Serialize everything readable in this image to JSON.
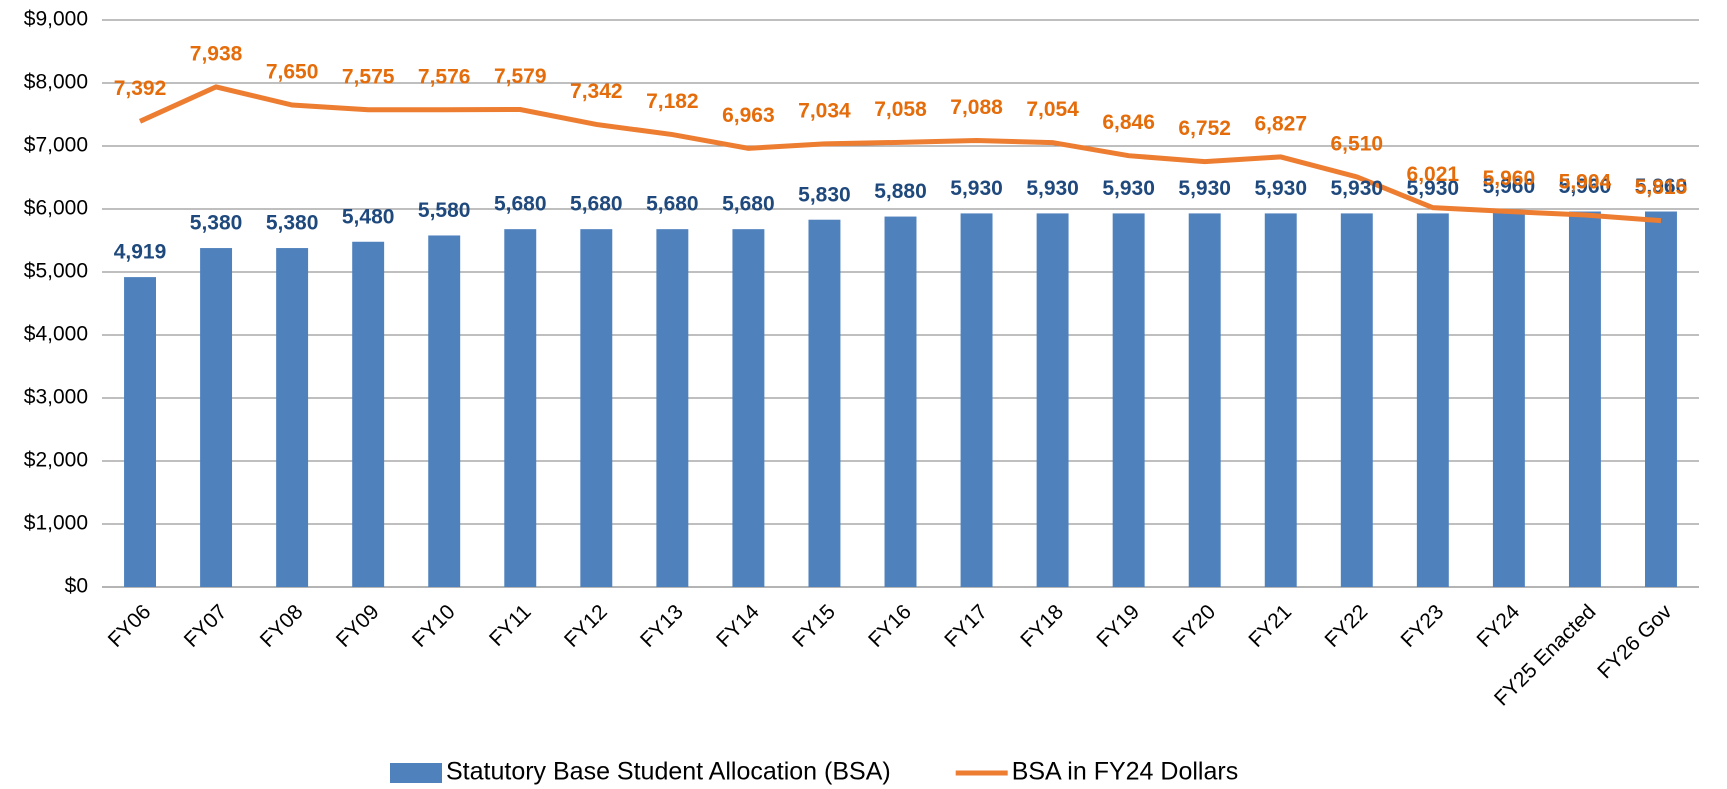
{
  "chart_data": {
    "type": "bar_line",
    "categories": [
      "FY06",
      "FY07",
      "FY08",
      "FY09",
      "FY10",
      "FY11",
      "FY12",
      "FY13",
      "FY14",
      "FY15",
      "FY16",
      "FY17",
      "FY18",
      "FY19",
      "FY20",
      "FY21",
      "FY22",
      "FY23",
      "FY24",
      "FY25 Enacted",
      "FY26 Gov"
    ],
    "series": [
      {
        "name": "Statutory Base Student Allocation (BSA)",
        "type": "bar",
        "color": "#4f81bd",
        "label_color": "#1f497d",
        "values": [
          4919,
          5380,
          5380,
          5480,
          5580,
          5680,
          5680,
          5680,
          5680,
          5830,
          5880,
          5930,
          5930,
          5930,
          5930,
          5930,
          5930,
          5930,
          5960,
          5960,
          5960
        ],
        "value_labels": [
          "4,919",
          "5,380",
          "5,380",
          "5,480",
          "5,580",
          "5,680",
          "5,680",
          "5,680",
          "5,680",
          "5,830",
          "5,880",
          "5,930",
          "5,930",
          "5,930",
          "5,930",
          "5,930",
          "5,930",
          "5,930",
          "5,960",
          "5,960",
          "5,960"
        ]
      },
      {
        "name": "BSA in FY24 Dollars",
        "type": "line",
        "color": "#ed7d31",
        "label_color": "#e46c0a",
        "values": [
          7392,
          7938,
          7650,
          7575,
          7576,
          7579,
          7342,
          7182,
          6963,
          7034,
          7058,
          7088,
          7054,
          6846,
          6752,
          6827,
          6510,
          6021,
          5960,
          5904,
          5815
        ],
        "value_labels": [
          "7,392",
          "7,938",
          "7,650",
          "7,575",
          "7,576",
          "7,579",
          "7,342",
          "7,182",
          "6,963",
          "7,034",
          "7,058",
          "7,088",
          "7,054",
          "6,846",
          "6,752",
          "6,827",
          "6,510",
          "6,021",
          "5,960",
          "5,904",
          "5,815"
        ]
      }
    ],
    "ylim": [
      0,
      9000
    ],
    "yticks": [
      {
        "value": 0,
        "label": "$0"
      },
      {
        "value": 1000,
        "label": "$1,000"
      },
      {
        "value": 2000,
        "label": "$2,000"
      },
      {
        "value": 3000,
        "label": "$3,000"
      },
      {
        "value": 4000,
        "label": "$4,000"
      },
      {
        "value": 5000,
        "label": "$5,000"
      },
      {
        "value": 6000,
        "label": "$6,000"
      },
      {
        "value": 7000,
        "label": "$7,000"
      },
      {
        "value": 8000,
        "label": "$8,000"
      },
      {
        "value": 9000,
        "label": "$9,000"
      }
    ],
    "grid": true,
    "legend": "bottom"
  }
}
